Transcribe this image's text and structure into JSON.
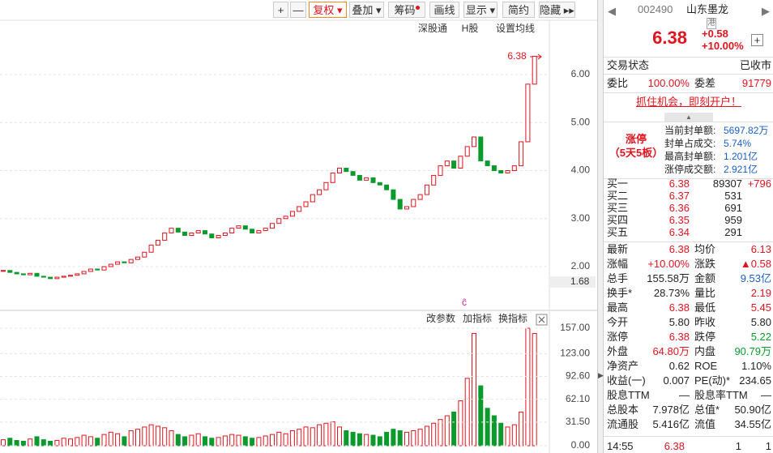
{
  "toolbar": [
    "+",
    "—",
    "复权",
    "叠加",
    "筹码",
    "画线",
    "显示",
    "简约",
    "隐藏"
  ],
  "chart": {
    "links": [
      "深股通",
      "H股",
      "设置均线"
    ],
    "last_flag": "6.38",
    "low_marker": {
      "value": 1.68,
      "label": "1.68"
    },
    "price_ylim": [
      1.14,
      7.13
    ],
    "price_ticks": [
      {
        "value": 6,
        "label": "6.00"
      },
      {
        "value": 5,
        "label": "5.00"
      },
      {
        "value": 4,
        "label": "4.00"
      },
      {
        "value": 3,
        "label": "3.00"
      },
      {
        "value": 2,
        "label": "2.00"
      }
    ],
    "closes": [
      1.92,
      1.88,
      1.85,
      1.83,
      1.86,
      1.8,
      1.78,
      1.75,
      1.78,
      1.8,
      1.82,
      1.85,
      1.9,
      1.95,
      1.93,
      2.0,
      2.05,
      2.1,
      2.08,
      2.15,
      2.2,
      2.3,
      2.45,
      2.55,
      2.7,
      2.8,
      2.72,
      2.65,
      2.7,
      2.75,
      2.68,
      2.6,
      2.65,
      2.7,
      2.8,
      2.85,
      2.78,
      2.7,
      2.75,
      2.8,
      2.9,
      3.0,
      3.05,
      3.15,
      3.25,
      3.35,
      3.5,
      3.6,
      3.75,
      3.95,
      4.05,
      3.98,
      3.9,
      3.8,
      3.85,
      3.75,
      3.7,
      3.6,
      3.4,
      3.2,
      3.25,
      3.4,
      3.5,
      3.7,
      3.9,
      4.1,
      4.2,
      4.05,
      4.3,
      4.5,
      4.7,
      4.2,
      4.1,
      4.0,
      3.95,
      4.0,
      4.1,
      4.6,
      5.8,
      6.38
    ],
    "volumes": [
      8,
      10,
      7,
      6,
      9,
      12,
      8,
      6,
      7,
      10,
      9,
      11,
      14,
      12,
      10,
      15,
      18,
      16,
      12,
      20,
      22,
      25,
      28,
      26,
      24,
      20,
      15,
      12,
      14,
      16,
      12,
      10,
      11,
      13,
      15,
      14,
      12,
      10,
      11,
      13,
      15,
      18,
      16,
      20,
      22,
      25,
      24,
      28,
      30,
      32,
      25,
      20,
      18,
      16,
      15,
      14,
      12,
      18,
      22,
      20,
      18,
      20,
      22,
      26,
      30,
      35,
      40,
      45,
      60,
      90,
      150,
      80,
      50,
      40,
      30,
      25,
      28,
      45,
      157,
      150
    ],
    "volume_ylim": [
      0,
      157
    ],
    "volume_ticks": [
      {
        "value": 157,
        "label": "157.00"
      },
      {
        "value": 123,
        "label": "123.00"
      },
      {
        "value": 92.6,
        "label": "92.60"
      },
      {
        "value": 62.1,
        "label": "62.10"
      },
      {
        "value": 31.5,
        "label": "31.50"
      },
      {
        "value": 0,
        "label": "0.00"
      }
    ],
    "panel_buttons": [
      "改参数",
      "加指标",
      "换指标"
    ]
  },
  "quote": {
    "code": "002490",
    "name": "山东墨龙",
    "tag": "港",
    "price": "6.38",
    "change": "+0.58",
    "change_pct": "+10.00%",
    "status": [
      "交易状态",
      "已收市"
    ],
    "ratio": [
      "委比",
      "100.00%",
      "委差",
      "91779"
    ],
    "banner": "抓住机会，即刻开户！",
    "limit": {
      "title": "涨停",
      "streak": "（5天5板）",
      "rows": [
        [
          "当前封单额:",
          "5697.82万"
        ],
        [
          "封单占成交:",
          "5.74%"
        ],
        [
          "最高封单额:",
          "1.201亿"
        ],
        [
          "涨停成交额:",
          "2.921亿"
        ]
      ]
    },
    "orderbook": [
      [
        "买一",
        "6.38",
        "89307",
        "+796"
      ],
      [
        "买二",
        "6.37",
        "531"
      ],
      [
        "买三",
        "6.36",
        "691"
      ],
      [
        "买四",
        "6.35",
        "959"
      ],
      [
        "买五",
        "6.34",
        "291"
      ]
    ],
    "stats": [
      [
        "最新",
        "6.38",
        "均价",
        "6.13"
      ],
      [
        "涨幅",
        "+10.00%",
        "涨跌",
        "▲0.58"
      ],
      [
        "总手",
        "155.58万",
        "金额",
        "9.53亿"
      ],
      [
        "换手*",
        "28.73%",
        "量比",
        "2.19"
      ],
      [
        "最高",
        "6.38",
        "最低",
        "5.45"
      ],
      [
        "今开",
        "5.80",
        "昨收",
        "5.80"
      ],
      [
        "涨停",
        "6.38",
        "跌停",
        "5.22"
      ],
      [
        "外盘",
        "64.80万",
        "内盘",
        "90.79万"
      ],
      [
        "净资产",
        "0.62",
        "ROE",
        "1.10%"
      ],
      [
        "收益(一)",
        "0.007",
        "PE(动)*",
        "234.65"
      ],
      [
        "股息TTM",
        "—",
        "股息率TTM",
        "—"
      ],
      [
        "总股本",
        "7.978亿",
        "总值*",
        "50.90亿"
      ],
      [
        "流通股",
        "5.416亿",
        "流值",
        "34.55亿"
      ]
    ],
    "tick": [
      "14:55",
      "6.38",
      "1",
      "1"
    ]
  }
}
